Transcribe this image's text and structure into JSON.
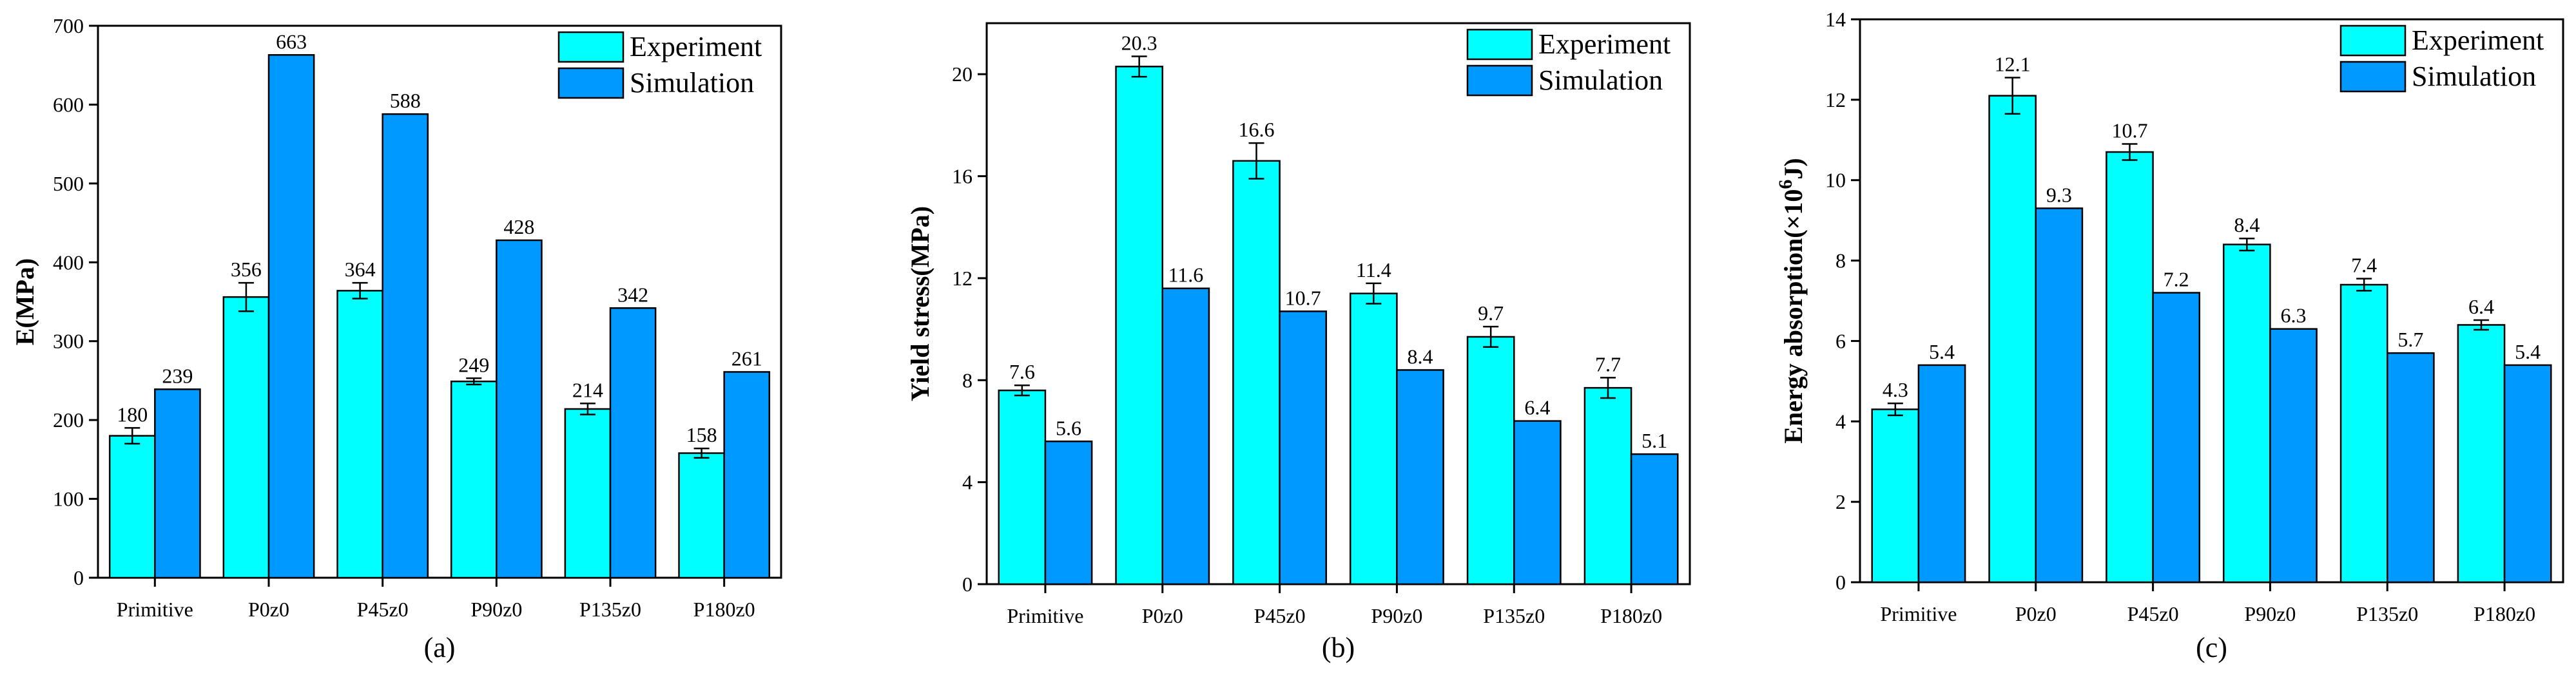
{
  "colors": {
    "experiment": "#00FFFF",
    "simulation": "#0099FF",
    "axis": "#000000"
  },
  "chart_data": [
    {
      "type": "bar",
      "caption": "(a)",
      "ylabel": "E(MPa)",
      "ylim": [
        0,
        700
      ],
      "yticks": [
        0,
        100,
        200,
        300,
        400,
        500,
        600,
        700
      ],
      "categories": [
        "Primitive",
        "P0z0",
        "P45z0",
        "P90z0",
        "P135z0",
        "P180z0"
      ],
      "series": [
        {
          "name": "Experiment",
          "values": [
            180,
            356,
            364,
            249,
            214,
            158
          ],
          "errors": [
            10,
            18,
            10,
            4,
            7,
            6
          ]
        },
        {
          "name": "Simulation",
          "values": [
            239,
            663,
            588,
            428,
            342,
            261
          ],
          "errors": [
            0,
            0,
            0,
            0,
            0,
            0
          ]
        }
      ],
      "labels": [
        [
          "180",
          "356",
          "364",
          "249",
          "214",
          "158"
        ],
        [
          "239",
          "663",
          "588",
          "428",
          "342",
          "261"
        ]
      ],
      "legend": [
        "Experiment",
        "Simulation"
      ]
    },
    {
      "type": "bar",
      "caption": "(b)",
      "ylabel": "Yield stress(MPa)",
      "ylim": [
        0,
        22
      ],
      "yticks": [
        0,
        4,
        8,
        12,
        16,
        20
      ],
      "categories": [
        "Primitive",
        "P0z0",
        "P45z0",
        "P90z0",
        "P135z0",
        "P180z0"
      ],
      "series": [
        {
          "name": "Experiment",
          "values": [
            7.6,
            20.3,
            16.6,
            11.4,
            9.7,
            7.7
          ],
          "errors": [
            0.2,
            0.4,
            0.7,
            0.4,
            0.4,
            0.4
          ]
        },
        {
          "name": "Simulation",
          "values": [
            5.6,
            11.6,
            10.7,
            8.4,
            6.4,
            5.1
          ],
          "errors": [
            0,
            0,
            0,
            0,
            0,
            0
          ]
        }
      ],
      "labels": [
        [
          "7.6",
          "20.3",
          "16.6",
          "11.4",
          "9.7",
          "7.7"
        ],
        [
          "5.6",
          "11.6",
          "10.7",
          "8.4",
          "6.4",
          "5.1"
        ]
      ],
      "legend": [
        "Experiment",
        "Simulation"
      ]
    },
    {
      "type": "bar",
      "caption": "(c)",
      "ylabel": "Energy absorption(×10",
      "ylabel_sup": "6",
      "ylabel_end": "J)",
      "ylim": [
        0,
        14
      ],
      "yticks": [
        0,
        2,
        4,
        6,
        8,
        10,
        12,
        14
      ],
      "categories": [
        "Primitive",
        "P0z0",
        "P45z0",
        "P90z0",
        "P135z0",
        "P180z0"
      ],
      "series": [
        {
          "name": "Experiment",
          "values": [
            4.3,
            12.1,
            10.7,
            8.4,
            7.4,
            6.4
          ],
          "errors": [
            0.15,
            0.45,
            0.2,
            0.15,
            0.15,
            0.12
          ]
        },
        {
          "name": "Simulation",
          "values": [
            5.4,
            9.3,
            7.2,
            6.3,
            5.7,
            5.4
          ],
          "errors": [
            0,
            0,
            0,
            0,
            0,
            0
          ]
        }
      ],
      "labels": [
        [
          "4.3",
          "12.1",
          "10.7",
          "8.4",
          "7.4",
          "6.4"
        ],
        [
          "5.4",
          "9.3",
          "7.2",
          "6.3",
          "5.7",
          "5.4"
        ]
      ],
      "legend": [
        "Experiment",
        "Simulation"
      ]
    }
  ]
}
